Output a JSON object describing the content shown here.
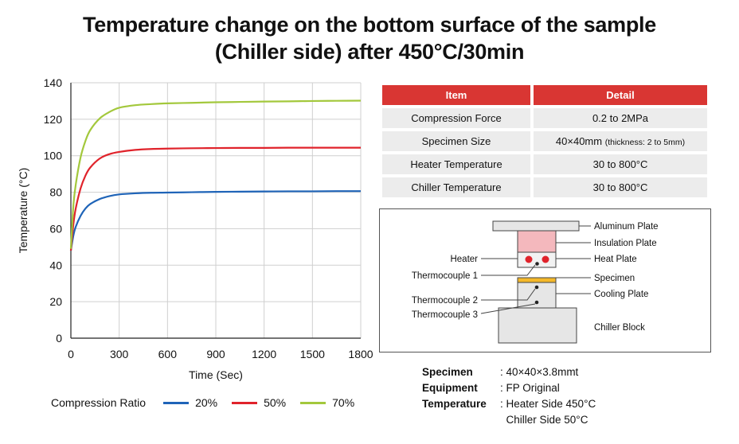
{
  "title_line1": "Temperature change on the bottom surface of the sample",
  "title_line2": "(Chiller side) after 450°C/30min",
  "chart_data": {
    "type": "line",
    "xlabel": "Time (Sec)",
    "ylabel": "Temperature  (°C)",
    "xlim": [
      0,
      1800
    ],
    "ylim": [
      0,
      140
    ],
    "xticks": [
      0,
      300,
      600,
      900,
      1200,
      1500,
      1800
    ],
    "yticks": [
      0,
      20,
      40,
      60,
      80,
      100,
      120,
      140
    ],
    "grid": true,
    "legend_title": "Compression Ratio",
    "legend_position": "bottom",
    "x": [
      0,
      15,
      30,
      60,
      90,
      120,
      180,
      240,
      300,
      400,
      500,
      600,
      750,
      900,
      1050,
      1200,
      1350,
      1500,
      1650,
      1800
    ],
    "series": [
      {
        "name": "20%",
        "color": "#1f64b8",
        "values": [
          48,
          56,
          61,
          67,
          71,
          73.5,
          76.3,
          77.9,
          78.8,
          79.4,
          79.7,
          79.8,
          80.0,
          80.2,
          80.3,
          80.4,
          80.5,
          80.5,
          80.6,
          80.6
        ]
      },
      {
        "name": "50%",
        "color": "#e0232b",
        "values": [
          48,
          62,
          71,
          82,
          89,
          93.5,
          98.5,
          100.9,
          102.1,
          103.2,
          103.7,
          103.9,
          104.1,
          104.2,
          104.3,
          104.3,
          104.4,
          104.4,
          104.4,
          104.4
        ]
      },
      {
        "name": "70%",
        "color": "#a3c83c",
        "values": [
          49,
          72,
          84,
          99,
          108,
          114,
          120.5,
          124,
          126.3,
          127.7,
          128.3,
          128.7,
          129.0,
          129.3,
          129.5,
          129.7,
          129.8,
          130.0,
          130.1,
          130.2
        ]
      }
    ]
  },
  "table": {
    "headers": [
      "Item",
      "Detail"
    ],
    "rows": [
      {
        "item": "Compression Force",
        "detail": "0.2 to 2MPa",
        "note": ""
      },
      {
        "item": "Specimen Size",
        "detail": "40×40mm",
        "note": "(thickness: 2 to 5mm)"
      },
      {
        "item": "Heater Temperature",
        "detail": "30 to 800°C",
        "note": ""
      },
      {
        "item": "Chiller Temperature",
        "detail": "30 to 800°C",
        "note": ""
      }
    ]
  },
  "diagram": {
    "right_labels": [
      "Aluminum Plate",
      "Insulation Plate",
      "Heat Plate",
      "Specimen",
      "Cooling Plate",
      "Chiller Block"
    ],
    "left_labels": [
      "Heater",
      "Thermocouple 1",
      "Thermocouple 2",
      "Thermocouple 3"
    ],
    "colors": {
      "insulation": "#f4b8bd",
      "specimen": "#f4b82a",
      "heater_dot": "#e0232b",
      "plate": "#e6e6e6"
    }
  },
  "specs": [
    {
      "key": "Specimen",
      "value": ": 40×40×3.8mmt"
    },
    {
      "key": "Equipment",
      "value": ": FP Original"
    },
    {
      "key": "Temperature",
      "value": ": Heater Side 450°C\n  Chiller Side 50°C"
    }
  ]
}
